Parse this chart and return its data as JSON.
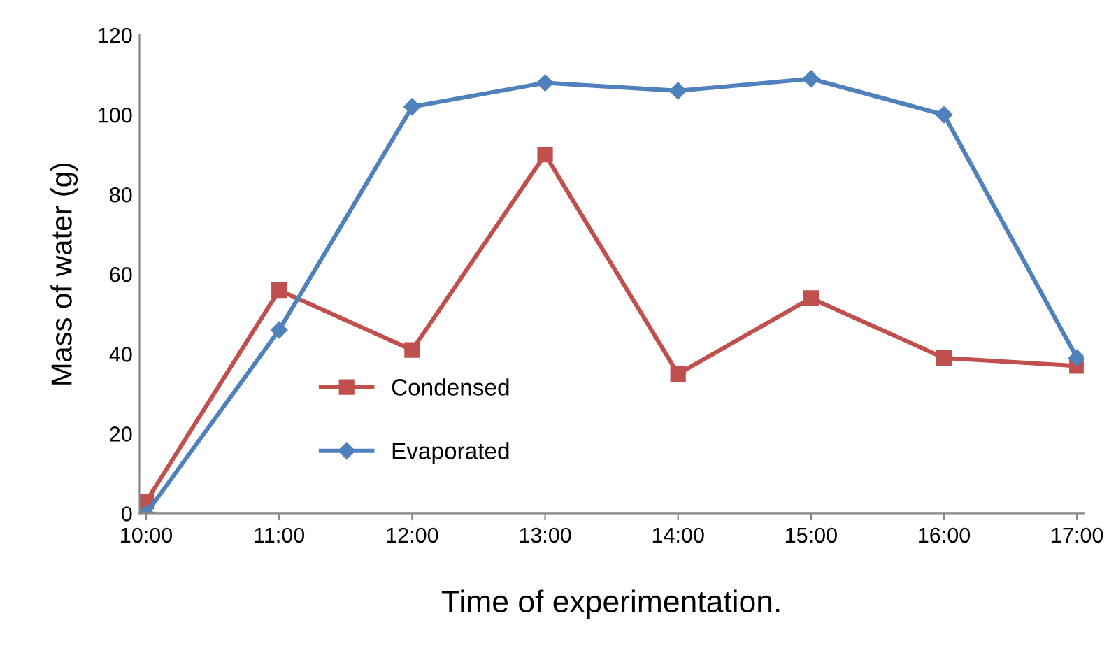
{
  "chart_data": {
    "type": "line",
    "xlabel": "Time of experimentation.",
    "ylabel": "Mass of water (g)",
    "categories": [
      "10:00",
      "11:00",
      "12:00",
      "13:00",
      "14:00",
      "15:00",
      "16:00",
      "17:00"
    ],
    "series": [
      {
        "name": "Condensed",
        "color": "#c0504d",
        "marker": "square",
        "values": [
          3,
          56,
          41,
          90,
          35,
          54,
          39,
          37
        ]
      },
      {
        "name": "Evaporated",
        "color": "#4f81bd",
        "marker": "diamond",
        "values": [
          0,
          46,
          102,
          108,
          106,
          109,
          100,
          39
        ]
      }
    ],
    "ylim": [
      0,
      120
    ],
    "yticks": [
      0,
      20,
      40,
      60,
      80,
      100,
      120
    ],
    "grid": false,
    "legend": "bottom left",
    "line_style": "solid"
  }
}
